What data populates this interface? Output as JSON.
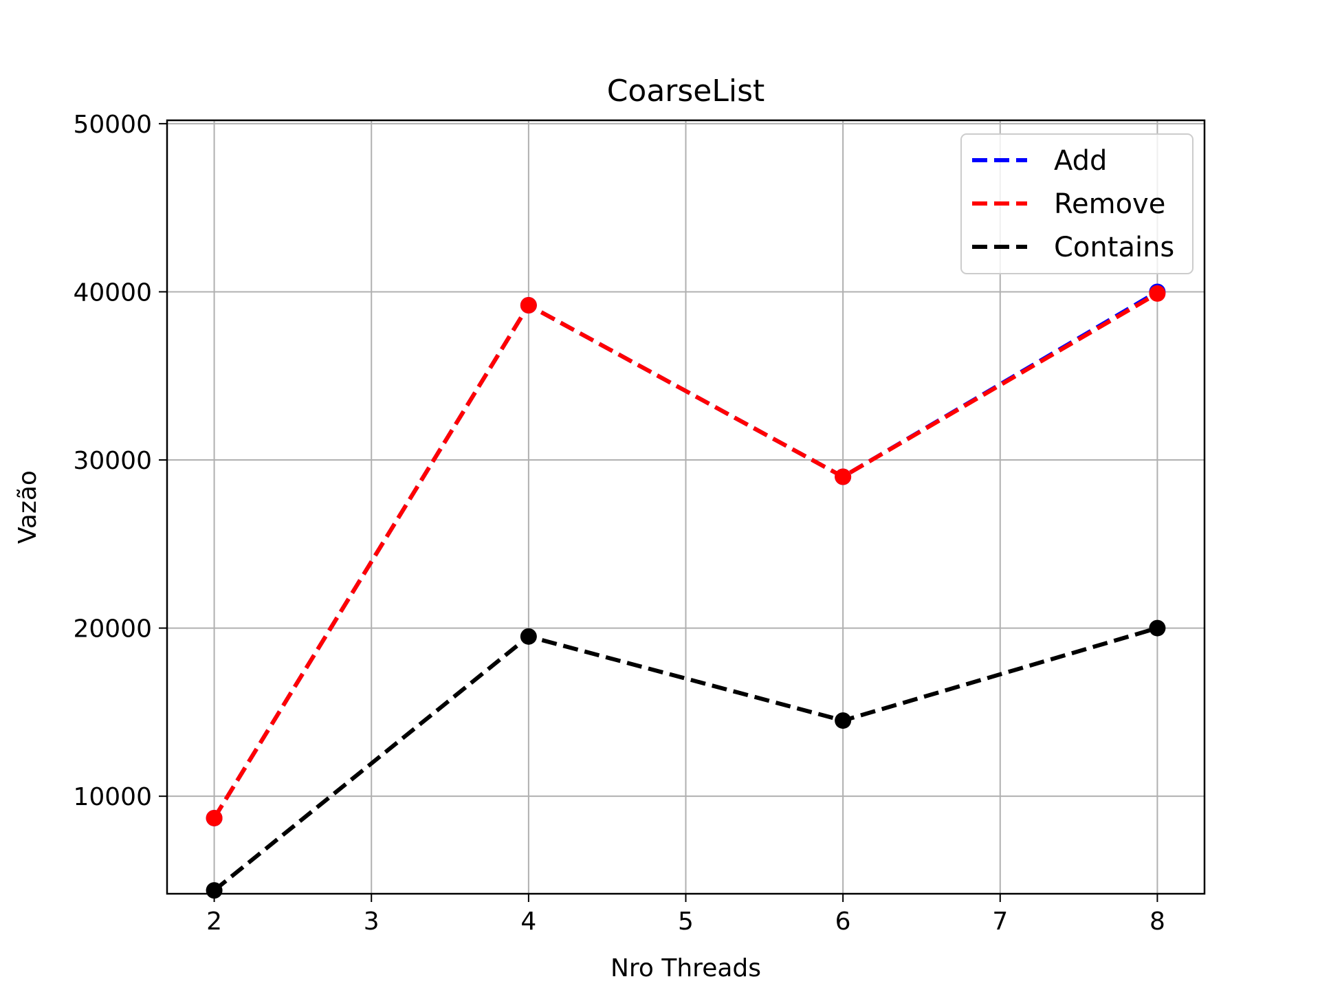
{
  "chart_data": {
    "type": "line",
    "title": "CoarseList",
    "xlabel": "Nro Threads",
    "ylabel": "Vazão",
    "x": [
      2,
      4,
      6,
      8
    ],
    "xticks": [
      2,
      3,
      4,
      5,
      6,
      7,
      8
    ],
    "yticks": [
      10000,
      20000,
      30000,
      40000,
      50000
    ],
    "xlim": [
      1.7,
      8.3
    ],
    "ylim": [
      4200,
      50200
    ],
    "grid": true,
    "legend_position": "top-right",
    "series": [
      {
        "name": "Add",
        "values": [
          8700,
          39200,
          29000,
          40000
        ],
        "color": "#0000ff",
        "marker_color": "#0000ff",
        "line_style": "dashed"
      },
      {
        "name": "Remove",
        "values": [
          8700,
          39200,
          29000,
          39900
        ],
        "color": "#ff0000",
        "marker_color": "#ff0000",
        "line_style": "dashed"
      },
      {
        "name": "Contains",
        "values": [
          4400,
          19500,
          14500,
          20000
        ],
        "color": "#000000",
        "marker_color": "#000000",
        "line_style": "dashed"
      }
    ]
  }
}
